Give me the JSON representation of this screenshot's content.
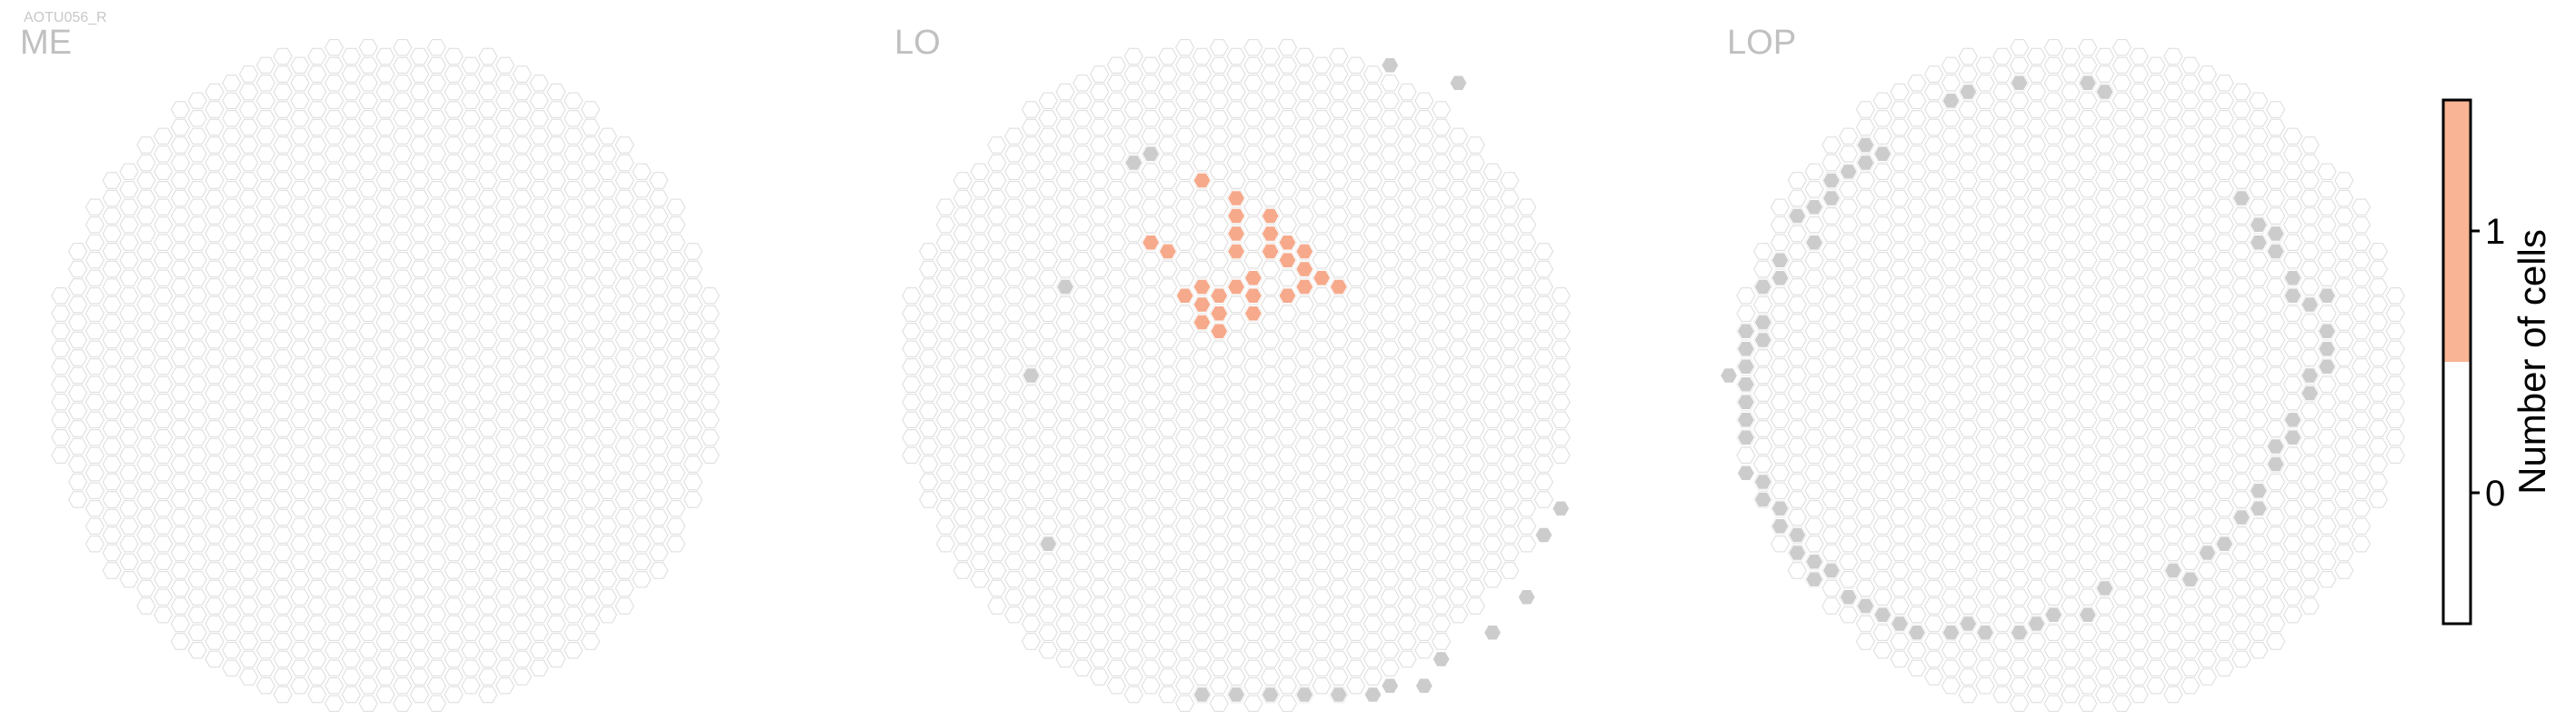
{
  "cell_type_label": "AOTU056_R",
  "chart_data": {
    "type": "heatmap",
    "description_of_encoding": "",
    "panels": [
      {
        "name": "ME",
        "highlighted_cells": [],
        "edge_cells": []
      },
      {
        "name": "LO",
        "highlighted_cells": [
          [
            -2,
            11
          ],
          [
            0,
            10
          ],
          [
            0,
            9
          ],
          [
            0,
            8
          ],
          [
            0,
            7
          ],
          [
            1,
            6
          ],
          [
            2,
            7
          ],
          [
            2,
            8
          ],
          [
            2,
            9
          ],
          [
            3,
            8
          ],
          [
            3,
            7
          ],
          [
            4,
            7
          ],
          [
            4,
            6
          ],
          [
            5,
            6
          ],
          [
            4,
            5
          ],
          [
            3,
            5
          ],
          [
            1,
            5
          ],
          [
            0,
            5
          ],
          [
            -1,
            5
          ],
          [
            -2,
            5
          ],
          [
            -3,
            5
          ],
          [
            -1,
            4
          ],
          [
            -2,
            4
          ],
          [
            -2,
            3
          ],
          [
            -1,
            3
          ],
          [
            1,
            4
          ],
          [
            -5,
            8
          ],
          [
            -4,
            7
          ],
          [
            6,
            5
          ]
        ],
        "edge_cells": [
          [
            9,
            18
          ],
          [
            13,
            17
          ],
          [
            -5,
            13
          ],
          [
            -6,
            12
          ],
          [
            -10,
            5
          ],
          [
            -12,
            0
          ],
          [
            -11,
            -9
          ],
          [
            19,
            -7
          ],
          [
            18,
            -9
          ],
          [
            17,
            -12
          ],
          [
            15,
            -14
          ],
          [
            12,
            -16
          ],
          [
            11,
            -17
          ],
          [
            9,
            -17
          ],
          [
            8,
            -18
          ],
          [
            6,
            -18
          ],
          [
            4,
            -18
          ],
          [
            2,
            -18
          ],
          [
            0,
            -18
          ],
          [
            -2,
            -18
          ]
        ]
      },
      {
        "name": "LOP",
        "highlighted_cells": [],
        "edge_cells": [
          [
            -7,
            16
          ],
          [
            -6,
            16
          ],
          [
            -3,
            17
          ],
          [
            1,
            17
          ],
          [
            2,
            16
          ],
          [
            -12,
            13
          ],
          [
            -11,
            13
          ],
          [
            -12,
            12
          ],
          [
            -13,
            12
          ],
          [
            -14,
            11
          ],
          [
            -14,
            10
          ],
          [
            -15,
            10
          ],
          [
            -16,
            9
          ],
          [
            -15,
            8
          ],
          [
            -17,
            7
          ],
          [
            -17,
            6
          ],
          [
            -18,
            5
          ],
          [
            -18,
            3
          ],
          [
            -19,
            3
          ],
          [
            -19,
            2
          ],
          [
            -18,
            2
          ],
          [
            -19,
            1
          ],
          [
            -19,
            0
          ],
          [
            -20,
            0
          ],
          [
            -19,
            -1
          ],
          [
            -19,
            -2
          ],
          [
            -19,
            -3
          ],
          [
            -19,
            -5
          ],
          [
            -18,
            -6
          ],
          [
            -18,
            -7
          ],
          [
            -17,
            -7
          ],
          [
            -17,
            -8
          ],
          [
            -16,
            -9
          ],
          [
            -16,
            -10
          ],
          [
            -15,
            -10
          ],
          [
            -15,
            -11
          ],
          [
            -14,
            -11
          ],
          [
            -13,
            -12
          ],
          [
            -12,
            -13
          ],
          [
            -11,
            -13
          ],
          [
            -10,
            -14
          ],
          [
            -9,
            -14
          ],
          [
            -7,
            -14
          ],
          [
            -6,
            -14
          ],
          [
            -5,
            -14
          ],
          [
            -3,
            -14
          ],
          [
            -2,
            -14
          ],
          [
            -1,
            -13
          ],
          [
            1,
            -13
          ],
          [
            2,
            -12
          ],
          [
            6,
            -11
          ],
          [
            7,
            -11
          ],
          [
            8,
            -10
          ],
          [
            9,
            -9
          ],
          [
            10,
            -8
          ],
          [
            11,
            -7
          ],
          [
            11,
            -6
          ],
          [
            12,
            -5
          ],
          [
            12,
            -4
          ],
          [
            13,
            -3
          ],
          [
            13,
            -2
          ],
          [
            14,
            -1
          ],
          [
            14,
            0
          ],
          [
            15,
            1
          ],
          [
            15,
            2
          ],
          [
            15,
            3
          ],
          [
            14,
            4
          ],
          [
            15,
            5
          ],
          [
            13,
            5
          ],
          [
            13,
            6
          ],
          [
            12,
            7
          ],
          [
            12,
            8
          ],
          [
            11,
            8
          ],
          [
            11,
            9
          ],
          [
            10,
            10
          ]
        ]
      }
    ],
    "colorbar": {
      "title": "Number of cells",
      "ticks": [
        "0",
        "1"
      ],
      "bins": [
        {
          "min": -0.5,
          "max": 0.5,
          "color": "#ffffff"
        },
        {
          "min": 0.5,
          "max": 1.5,
          "color": "#f8b494"
        }
      ]
    },
    "colors": {
      "grid_fill": "#ffffff",
      "grid_stroke": "#dcdcdc",
      "highlight": "#f6a98b",
      "edge": "#cccccc"
    }
  }
}
